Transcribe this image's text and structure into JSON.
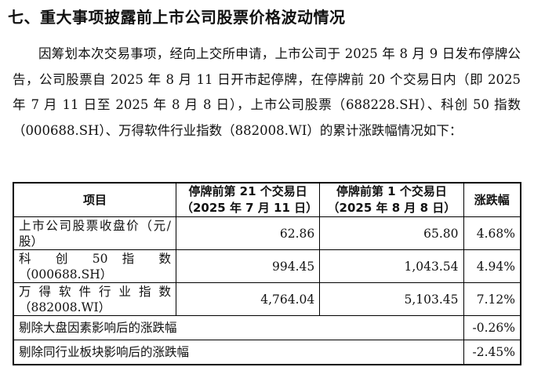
{
  "heading": "七、重大事项披露前上市公司股票价格波动情况",
  "paragraph": "因筹划本次交易事项，经向上交所申请，上市公司于 2025 年 8 月 9 日发布停牌公告，公司股票自 2025 年 8 月 11 日开市起停牌，在停牌前 20 个交易日内（即 2025 年 7 月 11 日至 2025 年 8 月 8 日），上市公司股票（688228.SH）、科创 50 指数（000688.SH）、万得软件行业指数（882008.WI）的累计涨跌幅情况如下：",
  "table": {
    "headers": [
      "项目",
      "停牌前第 21 个交易日（2025 年 7 月 11 日）",
      "停牌前第 1 个交易日（2025 年 8 月 8 日）",
      "涨跌幅"
    ],
    "rows": [
      {
        "item": "上市公司股票收盘价（元/股）",
        "before": "62.86",
        "after": "65.80",
        "change": "4.68%"
      },
      {
        "item": "科 创 50 指 数（000688.SH）",
        "before": "994.45",
        "after": "1,043.54",
        "change": "4.94%"
      },
      {
        "item": "万 得 软 件 行 业 指 数（882008.WI）",
        "before": "4,764.04",
        "after": "5,103.45",
        "change": "7.12%"
      }
    ],
    "adjusted": [
      {
        "item": "剔除大盘因素影响后的涨跌幅",
        "change": "-0.26%"
      },
      {
        "item": "剔除同行业板块影响后的涨跌幅",
        "change": "-2.45%"
      }
    ]
  }
}
